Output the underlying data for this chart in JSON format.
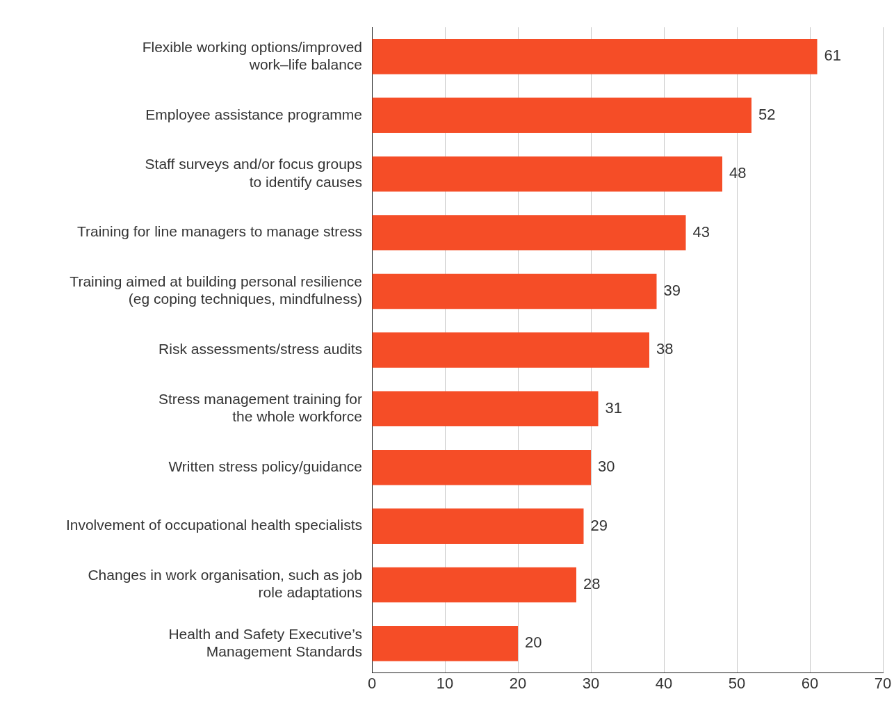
{
  "chart_data": {
    "type": "bar",
    "orientation": "horizontal",
    "categories": [
      "Flexible working options/improved\nwork–life balance",
      "Employee assistance programme",
      "Staff surveys and/or focus groups\nto identify causes",
      "Training for line managers to manage stress",
      "Training aimed at building personal resilience\n(eg coping techniques, mindfulness)",
      "Risk assessments/stress audits",
      "Stress management training for\nthe whole workforce",
      "Written stress policy/guidance",
      "Involvement of occupational health specialists",
      "Changes in work organisation, such as job\nrole adaptations",
      "Health and Safety Executive’s\nManagement Standards"
    ],
    "values": [
      61,
      52,
      48,
      43,
      39,
      38,
      31,
      30,
      29,
      28,
      20
    ],
    "color": "#f54d27",
    "xlim": [
      0,
      70
    ],
    "xticks": [
      0,
      10,
      20,
      30,
      40,
      50,
      60,
      70
    ],
    "grid": "x",
    "legend": false,
    "data_labels": true
  }
}
